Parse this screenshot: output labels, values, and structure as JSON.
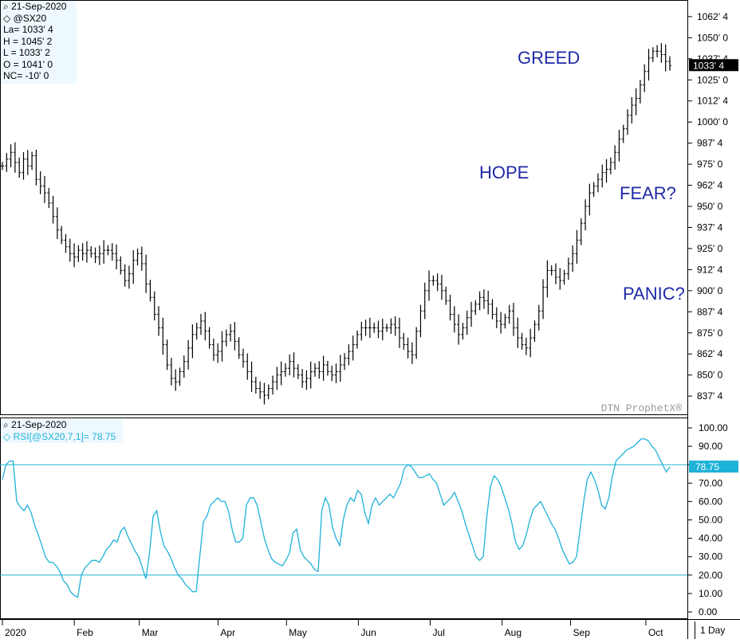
{
  "price_info": {
    "date": "21-Sep-2020",
    "symbol": "@SX20",
    "last": "La= 1033' 4",
    "high": "H = 1045' 2",
    "low": "L = 1033' 2",
    "open": "O = 1041' 0",
    "net_change": "NC= -10' 0"
  },
  "rsi_info": {
    "date": "21-Sep-2020",
    "label": "RSI[@SX20,7,1]= 78.75"
  },
  "annotations": {
    "greed": "GREED",
    "hope": "HOPE",
    "fear": "FEAR?",
    "panic": "PANIC?"
  },
  "watermark": "DTN ProphetX®",
  "last_price_tag": "1033' 4",
  "rsi_value_tag": "78.75",
  "timeframe": "1 Day",
  "colors": {
    "rsi_line": "#1fb2d8",
    "annotation_text": "#1f2aa6",
    "price_bars": "#000000"
  },
  "chart_data": [
    {
      "type": "bar",
      "subtype": "ohlc",
      "ylim": [
        830,
        1070
      ],
      "y_ticks": [
        "1062' 4",
        "1050' 0",
        "1037' 4",
        "1025' 0",
        "1012' 4",
        "1000' 0",
        "987' 4",
        "975' 0",
        "962' 4",
        "950' 0",
        "937' 4",
        "925' 0",
        "912' 4",
        "900' 0",
        "887' 4",
        "875' 0",
        "862' 4",
        "850' 0",
        "837' 4"
      ],
      "y_tick_values": [
        1062.5,
        1050,
        1037.5,
        1025,
        1012.5,
        1000,
        987.5,
        975,
        962.5,
        950,
        937.5,
        925,
        912.5,
        900,
        887.5,
        875,
        862.5,
        850,
        837.5
      ],
      "x_labels": [
        "2020",
        "Feb",
        "Mar",
        "Apr",
        "May",
        "Jun",
        "Jul",
        "Aug",
        "Sep",
        "Oct"
      ],
      "x_label_days": [
        0,
        21,
        40,
        63,
        83,
        104,
        125,
        146,
        166,
        188
      ],
      "n_days": 196,
      "day_series": [
        974,
        978,
        982,
        976,
        970,
        978,
        974,
        980,
        966,
        962,
        958,
        952,
        944,
        936,
        930,
        926,
        922,
        920,
        924,
        922,
        924,
        922,
        920,
        922,
        924,
        924,
        922,
        918,
        912,
        906,
        910,
        918,
        922,
        916,
        904,
        896,
        886,
        878,
        868,
        856,
        848,
        846,
        852,
        858,
        866,
        874,
        878,
        882,
        876,
        868,
        862,
        864,
        870,
        874,
        876,
        870,
        862,
        858,
        852,
        846,
        842,
        840,
        838,
        842,
        846,
        850,
        852,
        854,
        858,
        854,
        850,
        846,
        848,
        852,
        854,
        852,
        856,
        852,
        850,
        852,
        856,
        860,
        864,
        868,
        874,
        878,
        878,
        878,
        878,
        876,
        878,
        878,
        880,
        878,
        872,
        868,
        864,
        862,
        876,
        888,
        900,
        906,
        906,
        904,
        900,
        894,
        886,
        880,
        874,
        878,
        884,
        888,
        892,
        896,
        894,
        892,
        886,
        882,
        880,
        884,
        888,
        878,
        872,
        868,
        866,
        872,
        880,
        888,
        902,
        912,
        912,
        908,
        906,
        910,
        916,
        922,
        930,
        940,
        950,
        958,
        962,
        966,
        970,
        972,
        976,
        982,
        990,
        996,
        1004,
        1010,
        1014,
        1022,
        1030,
        1038,
        1042,
        1042,
        1040,
        1036,
        1033.5
      ]
    },
    {
      "type": "line",
      "name": "RSI[@SX20,7,1]",
      "ylim": [
        0,
        100
      ],
      "y_ticks": [
        "100.00",
        "90.00",
        "80.00",
        "70.00",
        "60.00",
        "50.00",
        "40.00",
        "30.00",
        "20.00",
        "10.00",
        "0.00"
      ],
      "y_tick_values": [
        100,
        90,
        80,
        70,
        60,
        50,
        40,
        30,
        20,
        10,
        0
      ],
      "reference_lines": [
        80,
        20
      ],
      "values": [
        72,
        80,
        82,
        82,
        60,
        57,
        55,
        58,
        54,
        47,
        42,
        36,
        30,
        27,
        27,
        25,
        22,
        17,
        15,
        11,
        9,
        8,
        20,
        24,
        26,
        28,
        28,
        27,
        30,
        34,
        36,
        39,
        38,
        44,
        46,
        41,
        37,
        33,
        30,
        24,
        18,
        32,
        52,
        55,
        44,
        36,
        33,
        29,
        24,
        20,
        18,
        15,
        13,
        11,
        11,
        30,
        49,
        52,
        58,
        60,
        62,
        60,
        60,
        55,
        45,
        38,
        38,
        40,
        58,
        62,
        62,
        58,
        49,
        40,
        34,
        29,
        27,
        26,
        25,
        28,
        32,
        43,
        45,
        34,
        30,
        28,
        26,
        23,
        22,
        55,
        62,
        58,
        46,
        40,
        36,
        50,
        58,
        62,
        60,
        66,
        64,
        54,
        48,
        58,
        62,
        58,
        60,
        62,
        64,
        62,
        66,
        70,
        78,
        80,
        79,
        76,
        73,
        73,
        74,
        75,
        72,
        70,
        64,
        58,
        60,
        62,
        65,
        60,
        55,
        48,
        42,
        36,
        30,
        28,
        30,
        52,
        68,
        74,
        72,
        68,
        62,
        56,
        48,
        38,
        34,
        36,
        42,
        50,
        56,
        58,
        60,
        56,
        52,
        48,
        45,
        40,
        34,
        30,
        26,
        27,
        30,
        45,
        60,
        72,
        76,
        72,
        66,
        58,
        56,
        62,
        74,
        82,
        84,
        86,
        88,
        89,
        90,
        92,
        94,
        94,
        93,
        90,
        88,
        84,
        80,
        76,
        78.75
      ]
    }
  ]
}
